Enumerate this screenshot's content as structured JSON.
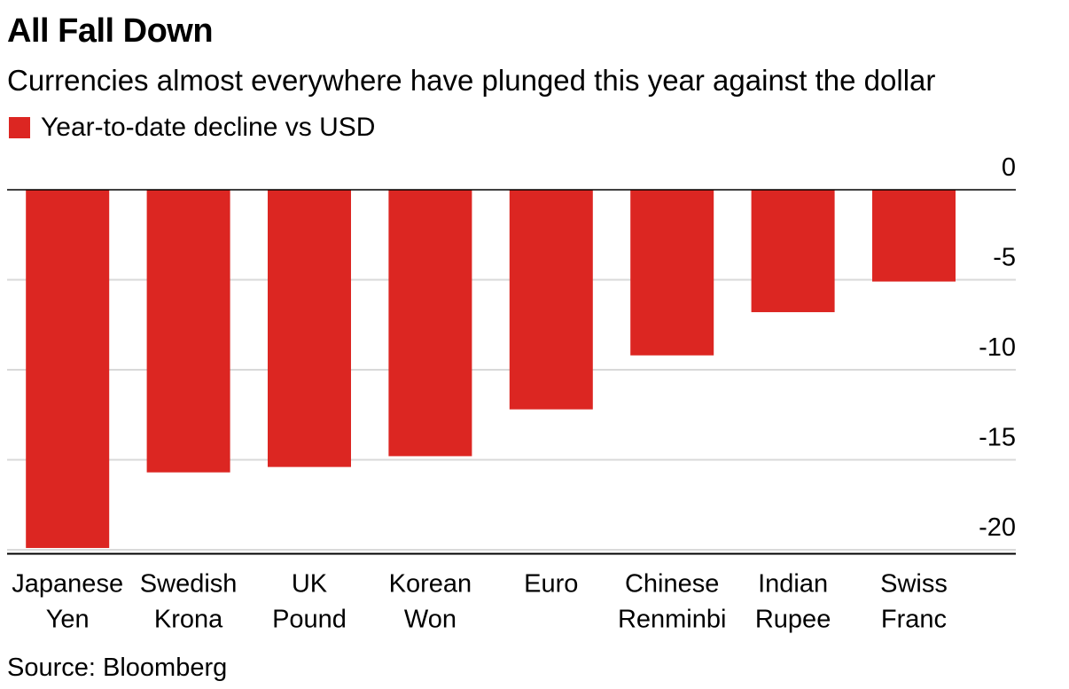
{
  "title": "All Fall Down",
  "subtitle": "Currencies almost everywhere have plunged this year against the dollar",
  "legend_label": "Year-to-date decline vs USD",
  "source": "Source: Bloomberg",
  "colors": {
    "bar": "#dc2622",
    "grid": "#d9d9d9",
    "axis": "#000000"
  },
  "chart_data": {
    "type": "bar",
    "categories": [
      [
        "Japanese",
        "Yen"
      ],
      [
        "Swedish",
        "Krona"
      ],
      [
        "UK",
        "Pound"
      ],
      [
        "Korean",
        "Won"
      ],
      [
        "Euro"
      ],
      [
        "Chinese",
        "Renminbi"
      ],
      [
        "Indian",
        "Rupee"
      ],
      [
        "Swiss",
        "Franc"
      ]
    ],
    "series": [
      {
        "name": "Year-to-date decline vs USD",
        "values": [
          -19.9,
          -15.7,
          -15.4,
          -14.8,
          -12.2,
          -9.2,
          -6.8,
          -5.1
        ]
      }
    ],
    "yticks": [
      0,
      -5,
      -10,
      -15,
      -20
    ],
    "ylim": [
      -20.2,
      0
    ],
    "grid": true,
    "legend_position": "top-left"
  }
}
